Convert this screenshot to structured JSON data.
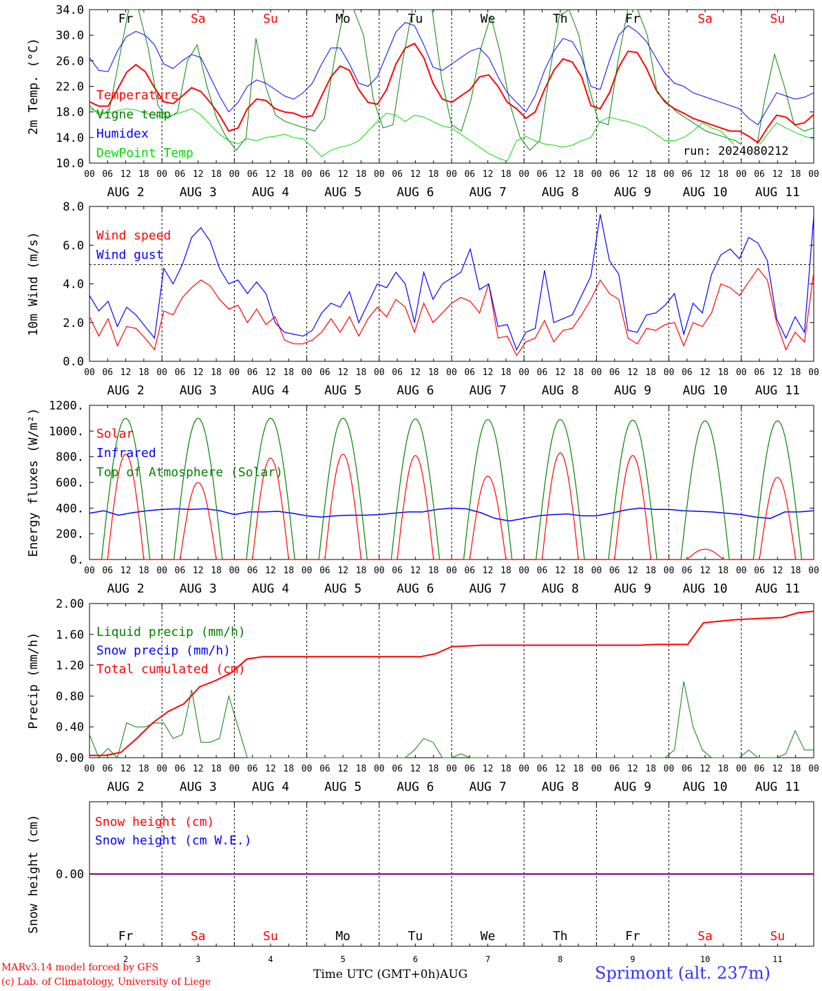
{
  "meta": {
    "run": "run: 2024080212",
    "location": "Sprimont (alt. 237m)",
    "credit1": "MARv3.14 model forced by GFS",
    "credit2": "(c) Lab. of Climatology, University of Liege",
    "xaxis_title": "Time UTC (GMT+0h)",
    "month": "AUG"
  },
  "days": {
    "weekday": [
      "Fr",
      "Sa",
      "Su",
      "Mo",
      "Tu",
      "We",
      "Th",
      "Fr",
      "Sa",
      "Su"
    ],
    "weekend": [
      false,
      true,
      true,
      false,
      false,
      false,
      false,
      false,
      true,
      true
    ],
    "date_labels": [
      "AUG  2",
      "AUG  3",
      "AUG  4",
      "AUG  5",
      "AUG  6",
      "AUG  7",
      "AUG  8",
      "AUG  9",
      "AUG 10",
      "AUG 11"
    ],
    "day_numbers": [
      "2",
      "3",
      "4",
      "5",
      "6",
      "7",
      "8",
      "9",
      "10",
      "11"
    ],
    "hour_ticks": [
      "00",
      "06",
      "12",
      "18"
    ],
    "final_hour_tick": "00"
  },
  "colors": {
    "red": "#ff0000",
    "green": "#008000",
    "blue": "#0000ff",
    "lightgreen": "#00dd00",
    "purple": "#800080"
  },
  "chart_data": [
    {
      "type": "line",
      "ylabel": "2m Temp. (°C)",
      "ylim": [
        10,
        34
      ],
      "yticks": [
        "10.0",
        "14.0",
        "18.0",
        "22.0",
        "26.0",
        "30.0",
        "34.0"
      ],
      "x": "hourly 00 AUG 2 to 00 AUG 12 (3-hourly points)",
      "legend": [
        "Temperature",
        "Vigne temp",
        "Humidex",
        "DewPoint Temp"
      ],
      "series": [
        {
          "name": "Temperature",
          "color": "red",
          "values": [
            19.6,
            18.9,
            18.9,
            21.5,
            24.2,
            25.4,
            24.3,
            21.8,
            19.6,
            19.3,
            20.5,
            21.8,
            21.2,
            19.5,
            17.5,
            15.0,
            15.5,
            18.5,
            20.0,
            19.8,
            18.5,
            18.0,
            17.8,
            17.2,
            17.4,
            20.5,
            23.5,
            25.2,
            24.5,
            21.5,
            19.5,
            19.2,
            21.5,
            25.5,
            28.0,
            28.7,
            26.5,
            22.5,
            20.0,
            19.5,
            20.5,
            21.5,
            23.5,
            23.8,
            22.0,
            19.5,
            18.5,
            17.0,
            18.0,
            21.5,
            24.5,
            26.3,
            25.8,
            23.5,
            19.0,
            18.5,
            21.0,
            25.0,
            27.5,
            27.3,
            24.8,
            21.5,
            19.5,
            18.5,
            17.8,
            17.0,
            16.5,
            16.0,
            15.5,
            15.0,
            15.0,
            14.2,
            13.2,
            15.5,
            17.5,
            17.2,
            16.0,
            16.3,
            17.6
          ]
        },
        {
          "name": "Vigne temp",
          "color": "green",
          "values": [
            19.0,
            17.5,
            18.0,
            26.0,
            38.0,
            36.0,
            28.0,
            19.0,
            17.0,
            18.0,
            26.0,
            28.5,
            22.0,
            17.0,
            14.0,
            12.0,
            14.0,
            29.5,
            22.0,
            17.5,
            16.5,
            16.0,
            15.5,
            15.0,
            17.0,
            26.0,
            38.0,
            38.0,
            30.0,
            20.0,
            15.5,
            16.0,
            26.0,
            36.0,
            38.0,
            34.0,
            23.0,
            16.0,
            15.0,
            20.0,
            28.0,
            33.0,
            27.0,
            19.0,
            14.0,
            12.0,
            13.5,
            24.0,
            33.0,
            34.0,
            30.0,
            22.0,
            16.5,
            16.0,
            26.0,
            38.0,
            37.0,
            30.0,
            21.0,
            19.5,
            18.0,
            17.0,
            16.0,
            15.0,
            14.5,
            14.0,
            13.5,
            12.5,
            11.0,
            20.0,
            27.0,
            22.0,
            16.0,
            15.0,
            15.5
          ]
        },
        {
          "name": "Humidex",
          "color": "blue",
          "values": [
            26.5,
            24.5,
            24.3,
            27.5,
            29.8,
            30.6,
            30.0,
            28.5,
            25.5,
            24.8,
            26.0,
            27.0,
            26.5,
            23.5,
            20.5,
            18.0,
            19.5,
            22.0,
            23.0,
            22.5,
            21.5,
            20.5,
            20.0,
            21.0,
            22.5,
            25.5,
            28.0,
            28.0,
            25.5,
            22.5,
            22.0,
            23.5,
            27.0,
            30.5,
            32.0,
            31.5,
            28.5,
            25.0,
            24.5,
            25.5,
            26.5,
            27.5,
            28.0,
            26.5,
            23.5,
            21.0,
            19.5,
            18.0,
            20.5,
            24.5,
            27.5,
            29.5,
            29.0,
            26.5,
            22.0,
            21.5,
            26.0,
            30.0,
            31.5,
            30.5,
            29.0,
            26.5,
            24.0,
            22.5,
            22.0,
            21.0,
            20.5,
            20.0,
            19.5,
            19.0,
            18.5,
            17.0,
            16.0,
            18.5,
            21.0,
            20.5,
            20.0,
            20.3,
            21.0
          ]
        },
        {
          "name": "DewPoint Temp",
          "color": "lightgreen",
          "values": [
            18.5,
            18.0,
            17.8,
            18.2,
            18.5,
            18.3,
            17.8,
            17.5,
            17.2,
            17.5,
            18.0,
            18.5,
            17.5,
            16.0,
            14.5,
            13.5,
            13.0,
            13.8,
            13.5,
            14.0,
            14.2,
            14.5,
            14.0,
            13.8,
            12.5,
            11.0,
            12.0,
            12.5,
            12.8,
            13.5,
            15.0,
            16.5,
            17.8,
            17.5,
            16.5,
            17.5,
            17.2,
            16.5,
            15.8,
            15.5,
            14.5,
            13.5,
            12.5,
            11.5,
            10.8,
            10.3,
            13.5,
            14.2,
            13.5,
            13.0,
            12.8,
            12.5,
            12.8,
            13.5,
            14.0,
            16.5,
            17.2,
            16.8,
            16.5,
            16.0,
            15.5,
            14.5,
            13.5,
            13.5,
            14.0,
            15.0,
            16.3,
            15.5,
            15.0,
            13.5,
            12.0,
            11.5,
            12.5,
            14.5,
            16.3,
            15.5,
            14.8,
            14.2,
            13.8
          ]
        }
      ]
    },
    {
      "type": "line",
      "ylabel": "10m Wind (m/s)",
      "ylim": [
        0,
        8
      ],
      "yticks": [
        "0.0",
        "2.0",
        "4.0",
        "6.0",
        "8.0"
      ],
      "reference_line": 5.0,
      "legend": [
        "Wind speed",
        "Wind gust"
      ],
      "series": [
        {
          "name": "Wind speed",
          "color": "red",
          "values": [
            2.3,
            1.3,
            2.2,
            0.8,
            1.8,
            1.7,
            1.2,
            0.6,
            2.6,
            2.4,
            3.3,
            3.8,
            4.2,
            3.9,
            3.2,
            2.7,
            2.9,
            2.0,
            2.7,
            1.9,
            2.3,
            1.1,
            0.9,
            0.9,
            1.1,
            1.5,
            2.2,
            1.5,
            2.3,
            1.3,
            2.2,
            2.8,
            2.3,
            3.2,
            2.8,
            1.5,
            3.0,
            2.0,
            2.5,
            3.0,
            3.3,
            3.1,
            2.5,
            4.0,
            1.2,
            1.3,
            0.3,
            1.0,
            1.2,
            2.1,
            1.0,
            1.6,
            1.7,
            2.4,
            3.2,
            4.2,
            3.5,
            3.2,
            1.2,
            0.9,
            1.7,
            1.6,
            1.9,
            2.0,
            0.8,
            2.0,
            1.8,
            2.5,
            4.0,
            3.8,
            3.4,
            4.1,
            4.8,
            4.2,
            2.0,
            0.6,
            1.5,
            1.0,
            4.6
          ]
        },
        {
          "name": "Wind gust",
          "color": "blue",
          "values": [
            3.4,
            2.6,
            3.1,
            1.8,
            2.8,
            2.4,
            1.8,
            1.2,
            4.8,
            4.0,
            5.0,
            6.4,
            6.9,
            6.2,
            4.8,
            4.0,
            4.2,
            3.5,
            4.1,
            3.5,
            2.0,
            1.5,
            1.4,
            1.3,
            1.6,
            2.5,
            3.0,
            2.8,
            3.6,
            2.0,
            3.0,
            4.0,
            3.8,
            4.6,
            4.0,
            2.0,
            4.6,
            3.2,
            4.0,
            4.3,
            4.6,
            5.8,
            3.7,
            4.0,
            1.8,
            1.9,
            0.6,
            1.5,
            1.7,
            4.7,
            2.0,
            2.2,
            2.4,
            3.4,
            4.4,
            7.6,
            5.2,
            4.5,
            1.6,
            1.5,
            2.4,
            2.5,
            2.9,
            3.5,
            1.4,
            3.0,
            2.5,
            4.5,
            5.5,
            5.8,
            5.3,
            6.4,
            6.1,
            5.2,
            2.2,
            1.2,
            2.3,
            1.5,
            7.5
          ]
        }
      ]
    },
    {
      "type": "line",
      "ylabel": "Energy fluxes (W/m²)",
      "ylim": [
        0,
        1200
      ],
      "yticks": [
        "0.",
        "200.",
        "400.",
        "600.",
        "800.",
        "1000.",
        "1200."
      ],
      "legend": [
        "Solar",
        "Infrared",
        "Top of Atmosphere (Solar)"
      ],
      "series": [
        {
          "name": "Solar",
          "color": "red",
          "peaks": [
            820,
            600,
            790,
            820,
            810,
            650,
            830,
            810,
            80,
            640
          ]
        },
        {
          "name": "Infrared",
          "color": "blue",
          "values": [
            360,
            380,
            345,
            365,
            380,
            390,
            395,
            390,
            395,
            380,
            350,
            370,
            370,
            375,
            360,
            340,
            330,
            340,
            345,
            345,
            350,
            360,
            370,
            370,
            390,
            400,
            395,
            365,
            320,
            300,
            320,
            340,
            350,
            355,
            340,
            340,
            360,
            385,
            400,
            390,
            390,
            380,
            375,
            370,
            360,
            350,
            330,
            320,
            370,
            370,
            380
          ]
        },
        {
          "name": "Top of Atmosphere (Solar)",
          "color": "green",
          "peaks": [
            1100,
            1100,
            1100,
            1100,
            1095,
            1090,
            1090,
            1085,
            1080,
            1080
          ]
        }
      ]
    },
    {
      "type": "line",
      "ylabel": "Precip (mm/h)",
      "ylim": [
        0,
        2
      ],
      "yticks": [
        "0.00",
        "0.40",
        "0.80",
        "1.20",
        "1.60",
        "2.00"
      ],
      "legend": [
        "Liquid precip (mm/h)",
        "Snow precip (mm/h)",
        "Total cumulated (cm)"
      ],
      "series": [
        {
          "name": "Liquid precip (mm/h)",
          "color": "green",
          "values": [
            0.3,
            0.0,
            0.12,
            0.0,
            0.45,
            0.4,
            0.4,
            0.45,
            0.45,
            0.25,
            0.3,
            0.88,
            0.2,
            0.2,
            0.25,
            0.8,
            0.4,
            0.0,
            0.0,
            0.0,
            0.0,
            0.0,
            0.0,
            0.0,
            0.0,
            0.0,
            0.0,
            0.0,
            0.0,
            0.0,
            0.0,
            0.0,
            0.0,
            0.0,
            0.0,
            0.1,
            0.25,
            0.2,
            0.0,
            0.0,
            0.05,
            0.0,
            0.0,
            0.0,
            0.0,
            0.0,
            0.0,
            0.0,
            0.0,
            0.0,
            0.0,
            0.0,
            0.0,
            0.0,
            0.0,
            0.0,
            0.0,
            0.0,
            0.0,
            0.0,
            0.0,
            0.0,
            0.0,
            0.1,
            0.99,
            0.4,
            0.1,
            0.0,
            0.0,
            0.0,
            0.0,
            0.1,
            0.0,
            0.0,
            0.0,
            0.05,
            0.35,
            0.1,
            0.1
          ]
        },
        {
          "name": "Total cumulated (cm)",
          "color": "red",
          "values": [
            0.03,
            0.03,
            0.07,
            0.25,
            0.45,
            0.6,
            0.7,
            0.92,
            1.0,
            1.1,
            1.28,
            1.31,
            1.31,
            1.31,
            1.31,
            1.31,
            1.31,
            1.31,
            1.31,
            1.31,
            1.31,
            1.31,
            1.35,
            1.44,
            1.45,
            1.46,
            1.46,
            1.46,
            1.46,
            1.46,
            1.46,
            1.46,
            1.46,
            1.46,
            1.46,
            1.46,
            1.47,
            1.47,
            1.47,
            1.75,
            1.77,
            1.79,
            1.8,
            1.81,
            1.82,
            1.88,
            1.9
          ]
        }
      ]
    },
    {
      "type": "line",
      "ylabel": "Snow height (cm)",
      "ytick": "0.00",
      "legend": [
        "Snow height (cm)",
        "Snow height (cm W.E.)"
      ],
      "series": [
        {
          "name": "Snow height (cm)",
          "color": "red",
          "values": [
            0,
            0
          ]
        },
        {
          "name": "Snow height (cm W.E.)",
          "color": "blue",
          "values": [
            0,
            0
          ]
        }
      ]
    }
  ]
}
